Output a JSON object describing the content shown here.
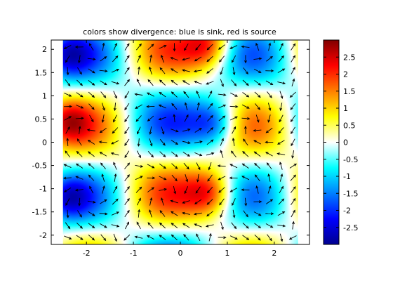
{
  "chart_data": {
    "type": "heatmap",
    "title": "colors show divergence: blue is sink, red is source",
    "xlabel": "",
    "ylabel": "",
    "overlay": "quiver (velocity vector field)",
    "xlim": [
      -2.75,
      2.75
    ],
    "ylim": [
      -2.2,
      2.2
    ],
    "xticks": [
      -2,
      -1,
      0,
      1,
      2
    ],
    "yticks": [
      -2,
      -1.5,
      -1,
      -0.5,
      0,
      0.5,
      1,
      1.5,
      2
    ],
    "field_extent": {
      "x": [
        -2.5,
        2.5
      ],
      "y": [
        -2.2,
        2.2
      ]
    },
    "colorbar": {
      "colormap": "jet",
      "range": [
        -3,
        3
      ],
      "ticks": [
        -2.5,
        -2,
        -1.5,
        -1,
        -0.5,
        0,
        0.5,
        1,
        1.5,
        2,
        2.5
      ]
    },
    "regions": [
      {
        "x": 0.65,
        "y": -1.1,
        "value": 2.9
      },
      {
        "x": 0.6,
        "y": 2.1,
        "value": 2.8
      },
      {
        "x": -2.45,
        "y": 0.45,
        "value": 2.7
      },
      {
        "x": 0.75,
        "y": 0.4,
        "value": -2.8
      },
      {
        "x": -2.45,
        "y": -1.2,
        "value": -2.7
      },
      {
        "x": -2.45,
        "y": 1.9,
        "value": -2.5
      }
    ]
  }
}
